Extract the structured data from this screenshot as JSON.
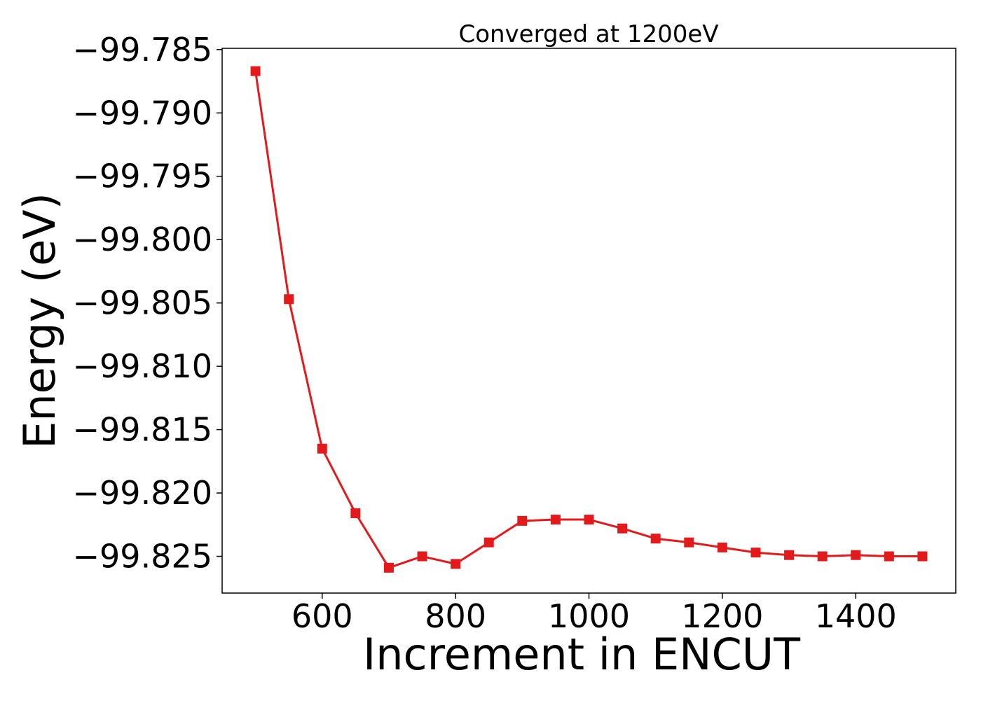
{
  "chart_data": {
    "type": "line",
    "title": "Converged at 1200eV",
    "xlabel": "Increment in ENCUT",
    "ylabel": "Energy (eV)",
    "xlim": [
      450,
      1550
    ],
    "ylim": [
      -99.8279,
      -99.7849
    ],
    "xticks": [
      600,
      800,
      1000,
      1200,
      1400
    ],
    "xtick_labels": [
      "600",
      "800",
      "1000",
      "1200",
      "1400"
    ],
    "yticks": [
      -99.785,
      -99.79,
      -99.795,
      -99.8,
      -99.805,
      -99.81,
      -99.815,
      -99.82,
      -99.825
    ],
    "ytick_labels": [
      "−99.785",
      "−99.790",
      "−99.795",
      "−99.800",
      "−99.805",
      "−99.810",
      "−99.815",
      "−99.820",
      "−99.825"
    ],
    "grid": false,
    "series": [
      {
        "color": "#e31a1c",
        "marker": "square",
        "x": [
          500,
          550,
          600,
          650,
          700,
          750,
          800,
          850,
          900,
          950,
          1000,
          1050,
          1100,
          1150,
          1200,
          1250,
          1300,
          1350,
          1400,
          1450,
          1500
        ],
        "y": [
          -99.7867,
          -99.8047,
          -99.8165,
          -99.8216,
          -99.8259,
          -99.825,
          -99.8256,
          -99.8239,
          -99.8222,
          -99.8221,
          -99.8221,
          -99.8228,
          -99.8236,
          -99.8239,
          -99.8243,
          -99.8247,
          -99.8249,
          -99.825,
          -99.8249,
          -99.825,
          -99.825
        ]
      }
    ]
  }
}
